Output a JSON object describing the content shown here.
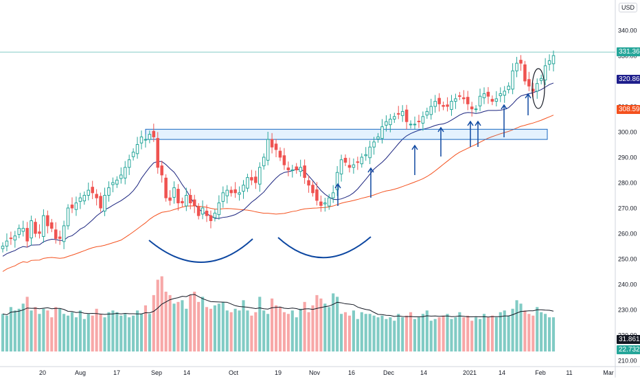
{
  "currency": "USD",
  "badges": [
    {
      "label": "331.36",
      "color": "#26a69a"
    },
    {
      "label": "320.86",
      "color": "#1e1e8c"
    },
    {
      "label": "308.59",
      "color": "#f4511e"
    },
    {
      "label": "31.861M",
      "color": "#131722"
    },
    {
      "label": "22.732M",
      "color": "#26a69a"
    }
  ],
  "colors": {
    "up": "#26a69a",
    "down": "#ef5350",
    "vol_up": "#80cbc4",
    "vol_down": "#f7a7a7",
    "ma_short": "#1a237e",
    "ma_long": "#f4511e",
    "annot": "#0d47a1",
    "zone": "#1565c0"
  },
  "chart_data": {
    "type": "candlestick",
    "price_axis": {
      "ticks": [
        "340.00",
        "330.00",
        "320.00",
        "310.00",
        "300.00",
        "290.00",
        "280.00",
        "270.00",
        "260.00",
        "250.00",
        "240.00",
        "230.00",
        "220.00",
        "210.00"
      ],
      "range": [
        207,
        351
      ]
    },
    "time_axis": {
      "labels": [
        "20",
        "Aug",
        "17",
        "Sep",
        "14",
        "Oct",
        "19",
        "Nov",
        "16",
        "Dec",
        "14",
        "2021",
        "14",
        "Feb",
        "11",
        "Mar"
      ]
    },
    "close": [
      255,
      257,
      258,
      259,
      262,
      262,
      257,
      265,
      260,
      260,
      267,
      263,
      262,
      258,
      258,
      263,
      270,
      270,
      272,
      274,
      275,
      277,
      276,
      274,
      270,
      275,
      278,
      280,
      281,
      283,
      286,
      289,
      292,
      295,
      298,
      297,
      299,
      298,
      286,
      283,
      274,
      273,
      278,
      272,
      272,
      275,
      272,
      271,
      267,
      270,
      267,
      265,
      268,
      272,
      276,
      277,
      276,
      276,
      276,
      279,
      282,
      281,
      280,
      286,
      290,
      297,
      294,
      293,
      290,
      287,
      285,
      285,
      285,
      286,
      282,
      279,
      276,
      273,
      271,
      272,
      274,
      276,
      284,
      289,
      288,
      286,
      287,
      288,
      290,
      291,
      294,
      296,
      298,
      302,
      304,
      305,
      306,
      307,
      308,
      304,
      303,
      303,
      304,
      306,
      308,
      310,
      312,
      311,
      310,
      310,
      312,
      313,
      314,
      313,
      311,
      309,
      309,
      314,
      315,
      314,
      312,
      313,
      315,
      316,
      318,
      324,
      327,
      327,
      320,
      318,
      316,
      319,
      321,
      326,
      328,
      330
    ],
    "volume_scale": {
      "range": [
        0,
        45
      ]
    },
    "volume": [
      22,
      21,
      26,
      24,
      25,
      28,
      32,
      24,
      26,
      22,
      25,
      24,
      20,
      26,
      25,
      22,
      21,
      23,
      20,
      24,
      19,
      22,
      21,
      25,
      22,
      20,
      23,
      24,
      23,
      21,
      22,
      20,
      21,
      24,
      22,
      27,
      22,
      33,
      42,
      44,
      35,
      33,
      28,
      29,
      30,
      25,
      33,
      35,
      29,
      32,
      26,
      25,
      27,
      28,
      29,
      24,
      23,
      25,
      24,
      30,
      24,
      21,
      23,
      32,
      24,
      22,
      31,
      27,
      26,
      23,
      22,
      24,
      20,
      25,
      29,
      23,
      27,
      33,
      31,
      28,
      26,
      34,
      32,
      22,
      23,
      21,
      24,
      19,
      23,
      22,
      22,
      21,
      20,
      21,
      19,
      20,
      18,
      22,
      20,
      21,
      23,
      19,
      20,
      22,
      24,
      18,
      19,
      20,
      21,
      22,
      19,
      20,
      23,
      20,
      21,
      18,
      20,
      19,
      22,
      20,
      21,
      20,
      23,
      24,
      21,
      25,
      30,
      28,
      24,
      22,
      21,
      26,
      23,
      22,
      20,
      20
    ],
    "volume_ma_ticks": [
      "31.861M",
      "22.732M"
    ],
    "resistance_zone": {
      "low": 297,
      "high": 301
    },
    "last_price": 331.36
  }
}
